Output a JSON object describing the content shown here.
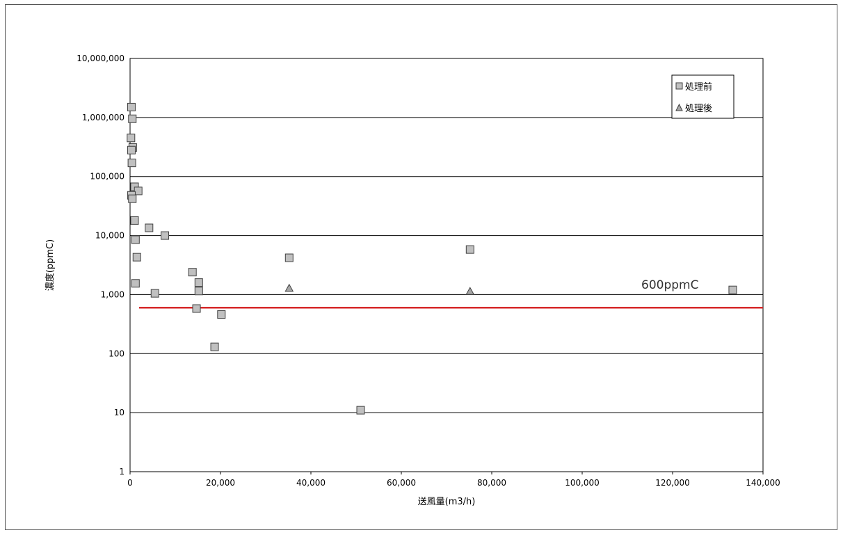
{
  "chart_data": {
    "type": "scatter",
    "title": "",
    "xlabel": "送風量(m3/h)",
    "ylabel": "濃度(ppmC)",
    "xlim": [
      0,
      140000
    ],
    "ylim": [
      1,
      10000000
    ],
    "y_scale": "log",
    "grid": "horizontal",
    "legend_position": "top-right",
    "x_ticks": [
      "0",
      "20,000",
      "40,000",
      "60,000",
      "80,000",
      "100,000",
      "120,000",
      "140,000"
    ],
    "y_ticks": [
      "1",
      "10",
      "100",
      "1,000",
      "10,000",
      "100,000",
      "1,000,000",
      "10,000,000"
    ],
    "series": [
      {
        "name": "処理前",
        "marker": "square",
        "color": "#c0c0c0",
        "points": [
          {
            "x": 300,
            "y": 1500000
          },
          {
            "x": 500,
            "y": 950000
          },
          {
            "x": 200,
            "y": 450000
          },
          {
            "x": 600,
            "y": 310000
          },
          {
            "x": 300,
            "y": 280000
          },
          {
            "x": 400,
            "y": 170000
          },
          {
            "x": 1000,
            "y": 67000
          },
          {
            "x": 1800,
            "y": 57000
          },
          {
            "x": 300,
            "y": 48000
          },
          {
            "x": 500,
            "y": 42000
          },
          {
            "x": 1000,
            "y": 18000
          },
          {
            "x": 4200,
            "y": 13500
          },
          {
            "x": 7700,
            "y": 10000
          },
          {
            "x": 1200,
            "y": 8500
          },
          {
            "x": 1500,
            "y": 4300
          },
          {
            "x": 1200,
            "y": 1550
          },
          {
            "x": 5500,
            "y": 1050
          },
          {
            "x": 13800,
            "y": 2400
          },
          {
            "x": 15200,
            "y": 1600
          },
          {
            "x": 15200,
            "y": 1150
          },
          {
            "x": 14700,
            "y": 580
          },
          {
            "x": 20200,
            "y": 460
          },
          {
            "x": 18700,
            "y": 130
          },
          {
            "x": 35200,
            "y": 4200
          },
          {
            "x": 51000,
            "y": 11
          },
          {
            "x": 75200,
            "y": 5800
          },
          {
            "x": 133300,
            "y": 1200
          }
        ]
      },
      {
        "name": "処理後",
        "marker": "triangle",
        "color": "#a6a6a6",
        "points": [
          {
            "x": 35200,
            "y": 1300
          },
          {
            "x": 75200,
            "y": 1150
          }
        ]
      }
    ],
    "threshold": {
      "label": "600ppmC",
      "value": 600,
      "color": "#d62728",
      "x_start": 2000,
      "x_end": 140000
    }
  }
}
